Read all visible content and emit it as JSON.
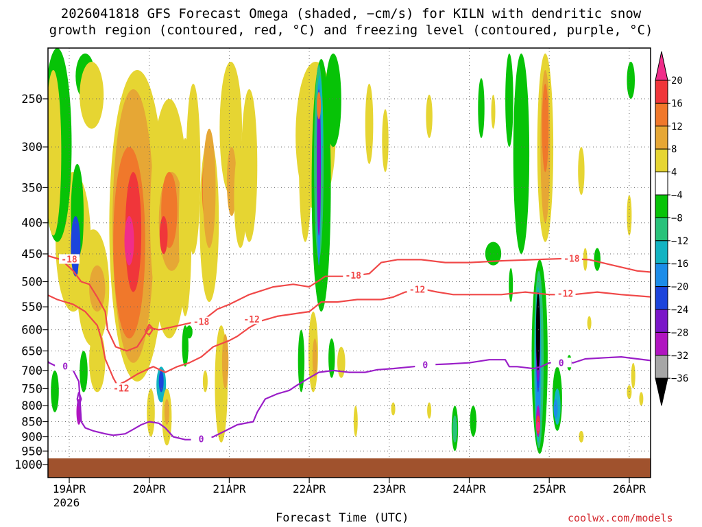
{
  "title_line1": "2026041818 GFS Forecast Omega (shaded, −cm/s) for KILN with dendritic snow",
  "title_line2": "growth region (contoured, red, °C) and freezing level (contoured, purple, °C)",
  "credit": "coolwx.com/models",
  "chart_data": {
    "type": "heatmap",
    "title": "2026041818 GFS Forecast Omega (shaded, −cm/s) for KILN with dendritic snow growth region (contoured, red, °C) and freezing level (contoured, purple, °C)",
    "xlabel": "Forecast Time (UTC)",
    "ylabel": "",
    "x_ticks": [
      "19APR",
      "20APR",
      "21APR",
      "22APR",
      "23APR",
      "24APR",
      "25APR",
      "26APR"
    ],
    "x_tick_year": "2026",
    "y_ticks": [
      "250",
      "300",
      "350",
      "400",
      "450",
      "500",
      "550",
      "600",
      "650",
      "700",
      "750",
      "800",
      "850",
      "900",
      "950",
      "1000"
    ],
    "y_values": [
      250,
      300,
      350,
      400,
      450,
      500,
      550,
      600,
      650,
      700,
      750,
      800,
      850,
      900,
      950,
      1000
    ],
    "colorbar": {
      "labels": [
        "20",
        "16",
        "12",
        "8",
        "4",
        "−4",
        "−8",
        "−12",
        "−16",
        "−20",
        "−24",
        "−28",
        "−32",
        "−36"
      ],
      "colors": [
        "#f02d8a",
        "#f0363a",
        "#f0782b",
        "#e6a735",
        "#e6d532",
        "#ffffff",
        "#07c307",
        "#28c27a",
        "#12b3c2",
        "#1c8ce8",
        "#1c44dc",
        "#7a16c8",
        "#b014c0",
        "#a6a6a6",
        "#000000"
      ]
    },
    "contour_labels": {
      "dgz_red": [
        "-18",
        "-12",
        "-18",
        "-12",
        "-18",
        "-12",
        "-18",
        "-12"
      ],
      "freezing_purple": [
        "0",
        "0",
        "0",
        "0"
      ]
    },
    "colors": {
      "dgz": "#f04848",
      "freezing": "#9a1ec8",
      "ground": "#a0522d"
    },
    "grid": true
  }
}
